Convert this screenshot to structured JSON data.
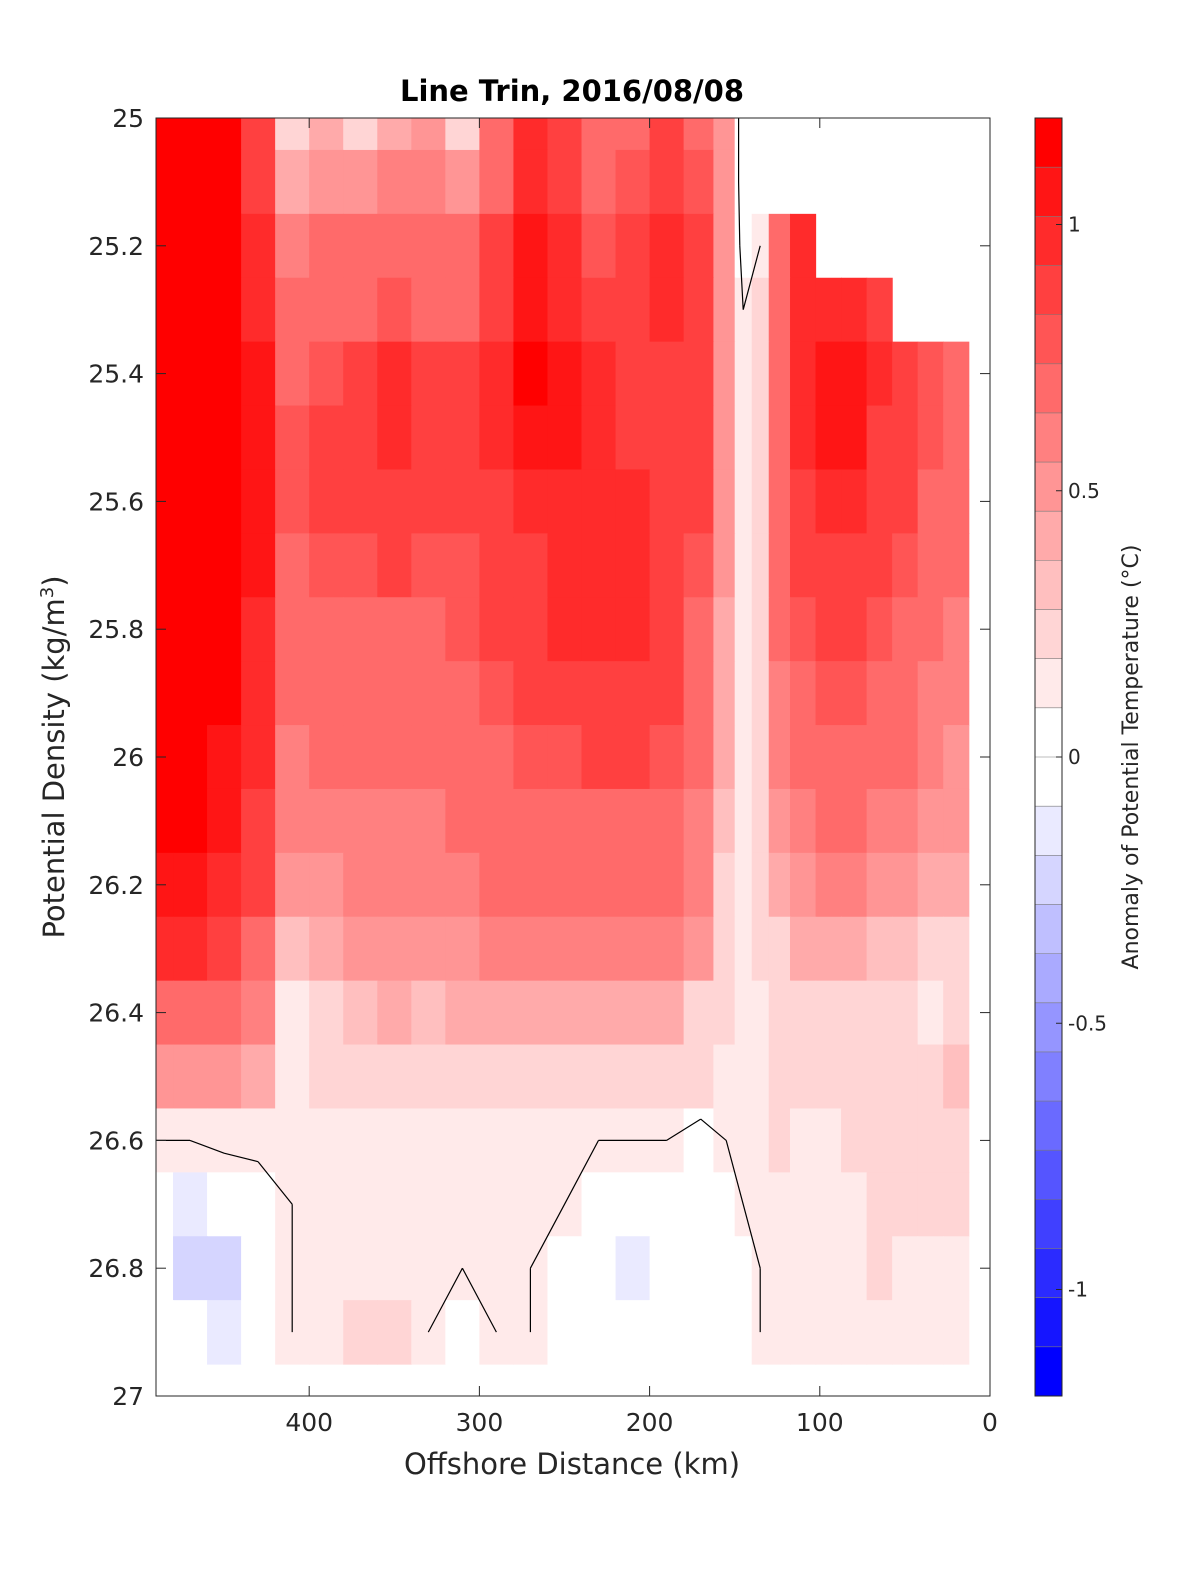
{
  "chart_data": {
    "type": "heatmap",
    "subtype": "filled-contour",
    "title": "Line Trin, 2016/08/08",
    "xlabel": "Offshore Distance (km)",
    "ylabel": "Potential Density (kg/m",
    "ylabel_superscript": "3",
    "ylabel_suffix": ")",
    "xlim": [
      490,
      0
    ],
    "x_reversed": true,
    "ylim": [
      25,
      27
    ],
    "y_reversed": true,
    "xticks": [
      400,
      300,
      200,
      100,
      0
    ],
    "xtick_labels": [
      "400",
      "300",
      "200",
      "100",
      "0"
    ],
    "yticks": [
      25,
      25.2,
      25.4,
      25.6,
      25.8,
      26,
      26.2,
      26.4,
      26.6,
      26.8,
      27
    ],
    "ytick_labels": [
      "25",
      "25.2",
      "25.4",
      "25.6",
      "25.8",
      "26",
      "26.2",
      "26.4",
      "26.6",
      "26.8",
      "27"
    ],
    "colorbar": {
      "label": "Anomaly of Potential Temperature (°C)",
      "range": [
        -1.2,
        1.2
      ],
      "step": 0.1,
      "ticks": [
        1,
        0.5,
        0,
        -0.5,
        -1
      ],
      "tick_labels": [
        "1",
        "0.5",
        "0",
        "-0.5",
        "-1"
      ],
      "colors_top_to_bottom": [
        "#ff0000",
        "#ff1515",
        "#ff2b2b",
        "#ff4040",
        "#ff5555",
        "#ff6a6a",
        "#ff8080",
        "#ff9595",
        "#ffaaaa",
        "#ffbfbf",
        "#ffd5d5",
        "#ffeaea",
        "#ffffff",
        "#ffffff",
        "#eaeaff",
        "#d5d5ff",
        "#bfbfff",
        "#aaaaff",
        "#9595ff",
        "#8080ff",
        "#6a6aff",
        "#5555ff",
        "#4040ff",
        "#2b2bff",
        "#1515ff",
        "#0000ff"
      ]
    },
    "x": [
      490,
      470,
      450,
      430,
      410,
      390,
      370,
      350,
      330,
      310,
      290,
      270,
      250,
      230,
      210,
      190,
      170,
      155,
      145,
      135,
      125,
      110,
      95,
      80,
      65,
      50,
      35,
      20
    ],
    "y": [
      25,
      25.1,
      25.2,
      25.3,
      25.4,
      25.5,
      25.6,
      25.7,
      25.8,
      25.9,
      26,
      26.1,
      26.2,
      26.3,
      26.4,
      26.5,
      26.6,
      26.7,
      26.8,
      26.9
    ],
    "anomaly_grid": [
      [
        1.2,
        1.25,
        1.2,
        0.8,
        0.2,
        0.3,
        0.2,
        0.3,
        0.4,
        0.2,
        0.6,
        0.9,
        0.85,
        0.6,
        0.7,
        0.8,
        0.7,
        0.4,
        -0.15,
        -0.1,
        null,
        null,
        null,
        null,
        null,
        null,
        null,
        null
      ],
      [
        1.2,
        1.25,
        1.2,
        0.8,
        0.3,
        0.4,
        0.4,
        0.5,
        0.5,
        0.4,
        0.7,
        0.95,
        0.85,
        0.7,
        0.75,
        0.85,
        0.75,
        0.4,
        -0.15,
        -0.05,
        null,
        null,
        null,
        null,
        null,
        null,
        null,
        null
      ],
      [
        1.2,
        1.25,
        1.2,
        0.9,
        0.5,
        0.6,
        0.6,
        0.6,
        0.6,
        0.6,
        0.8,
        1.0,
        0.9,
        0.75,
        0.8,
        0.9,
        0.8,
        0.4,
        -0.1,
        0.0,
        0.6,
        0.9,
        null,
        null,
        null,
        null,
        null,
        null
      ],
      [
        1.2,
        1.25,
        1.2,
        0.9,
        0.6,
        0.7,
        0.7,
        0.75,
        0.7,
        0.7,
        0.85,
        1.05,
        0.95,
        0.85,
        0.8,
        0.9,
        0.8,
        0.4,
        0.0,
        0.1,
        0.7,
        0.9,
        0.95,
        0.9,
        0.85,
        null,
        null,
        null
      ],
      [
        1.2,
        1.25,
        1.2,
        1.0,
        0.7,
        0.75,
        0.8,
        0.9,
        0.8,
        0.8,
        0.9,
        1.1,
        1.0,
        0.9,
        0.85,
        0.85,
        0.8,
        0.4,
        0.0,
        0.2,
        0.7,
        0.9,
        1.05,
        1.0,
        0.9,
        0.8,
        0.75,
        0.7
      ],
      [
        1.2,
        1.25,
        1.2,
        1.0,
        0.75,
        0.8,
        0.85,
        0.9,
        0.85,
        0.85,
        0.9,
        1.05,
        1.0,
        0.95,
        0.85,
        0.85,
        0.8,
        0.4,
        0.05,
        0.2,
        0.7,
        0.9,
        1.0,
        1.05,
        0.85,
        0.8,
        0.75,
        0.7
      ],
      [
        1.2,
        1.25,
        1.2,
        1.0,
        0.75,
        0.8,
        0.8,
        0.85,
        0.8,
        0.8,
        0.85,
        0.95,
        0.95,
        0.95,
        0.9,
        0.85,
        0.8,
        0.4,
        0.05,
        0.2,
        0.7,
        0.85,
        0.9,
        0.95,
        0.85,
        0.8,
        0.7,
        0.65
      ],
      [
        1.2,
        1.25,
        1.2,
        1.0,
        0.7,
        0.75,
        0.75,
        0.8,
        0.75,
        0.75,
        0.8,
        0.85,
        0.9,
        0.95,
        0.9,
        0.85,
        0.75,
        0.4,
        0.05,
        0.2,
        0.65,
        0.8,
        0.85,
        0.85,
        0.8,
        0.75,
        0.65,
        0.6
      ],
      [
        1.2,
        1.25,
        1.15,
        0.95,
        0.65,
        0.7,
        0.7,
        0.7,
        0.7,
        0.75,
        0.8,
        0.85,
        0.9,
        0.9,
        0.9,
        0.85,
        0.7,
        0.35,
        0.05,
        0.2,
        0.6,
        0.75,
        0.8,
        0.8,
        0.75,
        0.7,
        0.6,
        0.55
      ],
      [
        1.2,
        1.2,
        1.1,
        0.95,
        0.6,
        0.65,
        0.65,
        0.65,
        0.65,
        0.7,
        0.75,
        0.8,
        0.85,
        0.85,
        0.85,
        0.8,
        0.65,
        0.3,
        0.05,
        0.15,
        0.55,
        0.7,
        0.75,
        0.75,
        0.7,
        0.65,
        0.55,
        0.5
      ],
      [
        1.15,
        1.15,
        1.05,
        0.9,
        0.55,
        0.6,
        0.6,
        0.6,
        0.6,
        0.65,
        0.7,
        0.75,
        0.75,
        0.8,
        0.8,
        0.75,
        0.6,
        0.3,
        0.05,
        0.15,
        0.5,
        0.65,
        0.7,
        0.7,
        0.65,
        0.6,
        0.5,
        0.45
      ],
      [
        1.1,
        1.1,
        1.0,
        0.85,
        0.5,
        0.5,
        0.55,
        0.55,
        0.55,
        0.6,
        0.65,
        0.7,
        0.7,
        0.7,
        0.7,
        0.7,
        0.55,
        0.25,
        0.05,
        0.1,
        0.4,
        0.55,
        0.6,
        0.65,
        0.55,
        0.5,
        0.45,
        0.4
      ],
      [
        1.0,
        1.0,
        0.95,
        0.8,
        0.4,
        0.45,
        0.5,
        0.5,
        0.5,
        0.55,
        0.6,
        0.6,
        0.65,
        0.65,
        0.65,
        0.65,
        0.5,
        0.2,
        0.05,
        0.1,
        0.3,
        0.45,
        0.5,
        0.5,
        0.45,
        0.4,
        0.35,
        0.3
      ],
      [
        0.9,
        0.9,
        0.85,
        0.7,
        0.25,
        0.35,
        0.4,
        0.4,
        0.4,
        0.45,
        0.5,
        0.5,
        0.55,
        0.55,
        0.55,
        0.55,
        0.4,
        0.15,
        0.05,
        0.1,
        0.2,
        0.3,
        0.35,
        0.3,
        0.25,
        0.25,
        0.2,
        0.2
      ],
      [
        0.7,
        0.7,
        0.7,
        0.55,
        0.05,
        0.2,
        0.25,
        0.3,
        0.25,
        0.3,
        0.3,
        0.35,
        0.35,
        0.35,
        0.35,
        0.3,
        0.2,
        0.1,
        0.05,
        0.05,
        0.1,
        0.2,
        0.15,
        0.15,
        0.1,
        0.15,
        0.05,
        0.15
      ],
      [
        0.4,
        0.4,
        0.4,
        0.3,
        0.05,
        0.1,
        0.1,
        0.15,
        0.1,
        0.15,
        0.15,
        0.2,
        0.2,
        0.2,
        0.2,
        0.15,
        0.1,
        0.05,
        0.0,
        0.0,
        0.1,
        0.1,
        0.1,
        0.1,
        0.1,
        0.15,
        0.2,
        0.25
      ],
      [
        0.0,
        0.0,
        0.05,
        0.05,
        0.05,
        0.05,
        0.05,
        0.05,
        0.0,
        0.05,
        0.05,
        0.05,
        0.0,
        0.0,
        0.0,
        0.0,
        -0.05,
        0.0,
        0.0,
        0.0,
        0.1,
        0.05,
        0.05,
        0.1,
        0.1,
        0.1,
        0.15,
        0.2
      ],
      [
        -0.2,
        -0.25,
        -0.2,
        -0.1,
        0.0,
        0.05,
        0.05,
        0.0,
        0.0,
        0.05,
        0.0,
        0.05,
        0.0,
        -0.1,
        -0.2,
        -0.15,
        -0.1,
        -0.05,
        0.0,
        0.0,
        0.05,
        0.05,
        0.05,
        0.05,
        0.1,
        0.1,
        0.1,
        0.1
      ],
      [
        -0.2,
        -0.3,
        -0.3,
        -0.15,
        0.0,
        0.0,
        0.0,
        0.05,
        0.0,
        0.0,
        0.0,
        0.0,
        -0.05,
        -0.15,
        -0.25,
        -0.15,
        -0.2,
        -0.15,
        -0.05,
        0.0,
        0.0,
        0.05,
        0.05,
        0.05,
        0.1,
        0.05,
        0.05,
        0.05
      ],
      [
        -0.15,
        -0.2,
        -0.25,
        -0.15,
        0.0,
        0.0,
        0.1,
        0.15,
        0.0,
        -0.05,
        0.0,
        0.0,
        -0.1,
        -0.15,
        -0.15,
        -0.15,
        -0.15,
        -0.15,
        -0.05,
        0.0,
        0.0,
        0.05,
        0.05,
        0.05,
        0.05,
        0.05,
        0.05,
        0.05
      ]
    ]
  }
}
